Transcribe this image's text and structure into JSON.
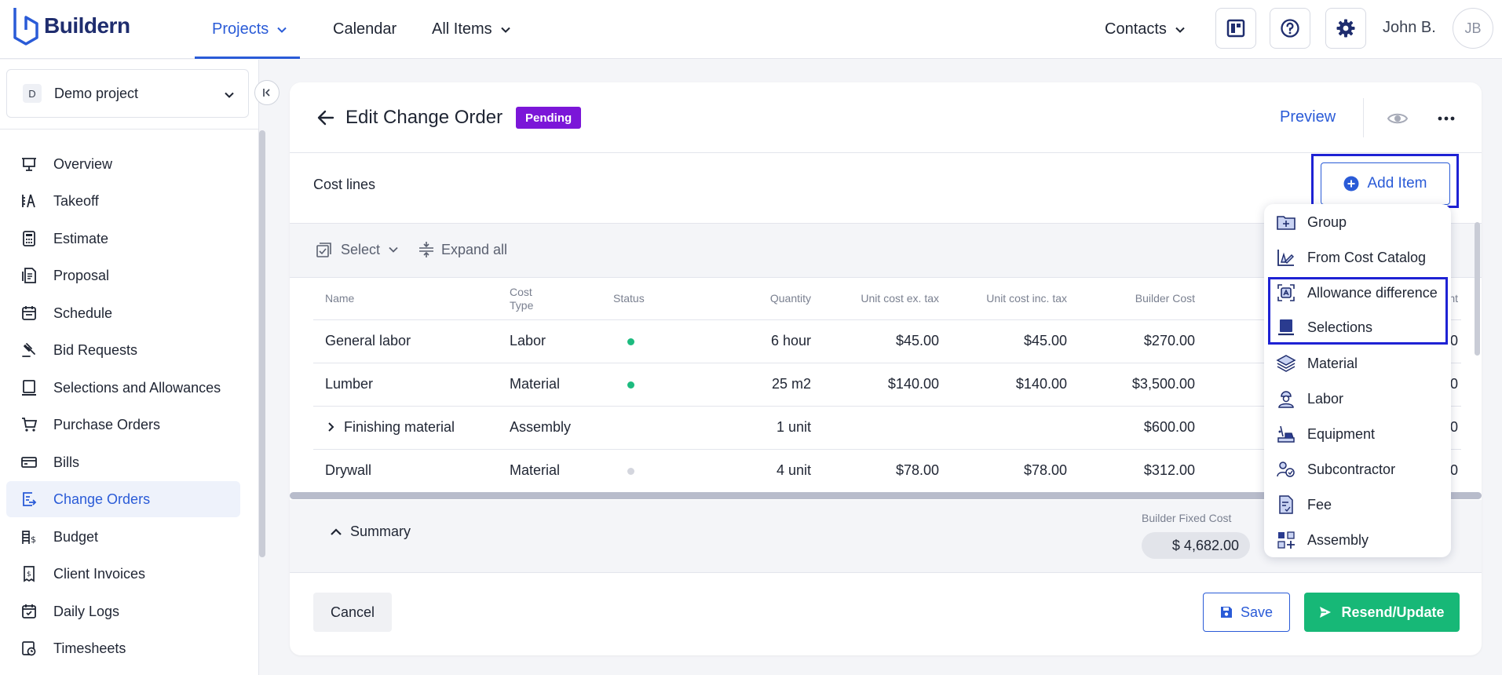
{
  "brand": {
    "name": "Buildern"
  },
  "topnav": {
    "items": [
      {
        "label": "Projects",
        "dropdown": true
      },
      {
        "label": "Calendar",
        "dropdown": false
      },
      {
        "label": "All Items",
        "dropdown": true
      }
    ],
    "contacts_label": "Contacts",
    "user_name": "John B.",
    "user_initials": "JB"
  },
  "sidebar": {
    "project": {
      "badge": "D",
      "name": "Demo project"
    },
    "items": [
      {
        "label": "Overview",
        "icon": "presentation-icon"
      },
      {
        "label": "Takeoff",
        "icon": "takeoff-icon"
      },
      {
        "label": "Estimate",
        "icon": "calculator-icon"
      },
      {
        "label": "Proposal",
        "icon": "proposal-icon"
      },
      {
        "label": "Schedule",
        "icon": "calendar-icon"
      },
      {
        "label": "Bid Requests",
        "icon": "gavel-icon"
      },
      {
        "label": "Selections and Allowances",
        "icon": "selections-icon"
      },
      {
        "label": "Purchase Orders",
        "icon": "cart-icon"
      },
      {
        "label": "Bills",
        "icon": "bills-icon"
      },
      {
        "label": "Change Orders",
        "icon": "change-order-icon",
        "active": true
      },
      {
        "label": "Budget",
        "icon": "budget-icon"
      },
      {
        "label": "Client Invoices",
        "icon": "invoice-icon"
      },
      {
        "label": "Daily Logs",
        "icon": "daily-log-icon"
      },
      {
        "label": "Timesheets",
        "icon": "timesheet-icon"
      }
    ]
  },
  "page": {
    "title": "Edit Change Order",
    "status": "Pending",
    "preview_label": "Preview",
    "section_title": "Cost lines",
    "add_item_label": "Add Item",
    "select_label": "Select",
    "expand_all_label": "Expand all"
  },
  "table": {
    "headers": {
      "name": "Name",
      "cost_type": "Cost Type",
      "status": "Status",
      "quantity": "Quantity",
      "unit_ex": "Unit cost ex. tax",
      "unit_inc": "Unit cost inc. tax",
      "builder_cost": "Builder Cost",
      "cut_col": "nt"
    },
    "rows": [
      {
        "name": "General labor",
        "cost_type": "Labor",
        "status_color": "#1dbb7f",
        "quantity": "6 hour",
        "unit_ex": "$45.00",
        "unit_inc": "$45.00",
        "builder_cost": "$270.00",
        "cut": "0",
        "expandable": false
      },
      {
        "name": "Lumber",
        "cost_type": "Material",
        "status_color": "#1dbb7f",
        "quantity": "25 m2",
        "unit_ex": "$140.00",
        "unit_inc": "$140.00",
        "builder_cost": "$3,500.00",
        "cut": "0",
        "expandable": false
      },
      {
        "name": "Finishing material",
        "cost_type": "Assembly",
        "status_color": "",
        "quantity": "1 unit",
        "unit_ex": "",
        "unit_inc": "",
        "builder_cost": "$600.00",
        "cut": "0",
        "expandable": true
      },
      {
        "name": "Drywall",
        "cost_type": "Material",
        "status_color": "#d4d6de",
        "quantity": "4 unit",
        "unit_ex": "$78.00",
        "unit_inc": "$78.00",
        "builder_cost": "$312.00",
        "cut": "0",
        "expandable": false
      }
    ]
  },
  "summary": {
    "toggle_label": "Summary",
    "fixed_cost_label": "Builder Fixed Cost",
    "fixed_cost_value": "$ 4,682.00"
  },
  "footer": {
    "cancel_label": "Cancel",
    "save_label": "Save",
    "resend_label": "Resend/Update"
  },
  "add_menu": {
    "items": [
      {
        "label": "Group",
        "icon": "group-folder-icon"
      },
      {
        "label": "From Cost Catalog",
        "icon": "cost-catalog-icon"
      },
      {
        "label": "Allowance difference",
        "icon": "allowance-difference-icon"
      },
      {
        "label": "Selections",
        "icon": "selections-icon"
      },
      {
        "label": "Material",
        "icon": "material-layers-icon"
      },
      {
        "label": "Labor",
        "icon": "labor-worker-icon"
      },
      {
        "label": "Equipment",
        "icon": "equipment-icon"
      },
      {
        "label": "Subcontractor",
        "icon": "subcontractor-icon"
      },
      {
        "label": "Fee",
        "icon": "fee-document-icon"
      },
      {
        "label": "Assembly",
        "icon": "assembly-icon"
      }
    ]
  },
  "colors": {
    "accent": "#2a5bd7",
    "pending": "#7b16d8",
    "success": "#17b877",
    "highlight_frame": "#1e22d4"
  }
}
